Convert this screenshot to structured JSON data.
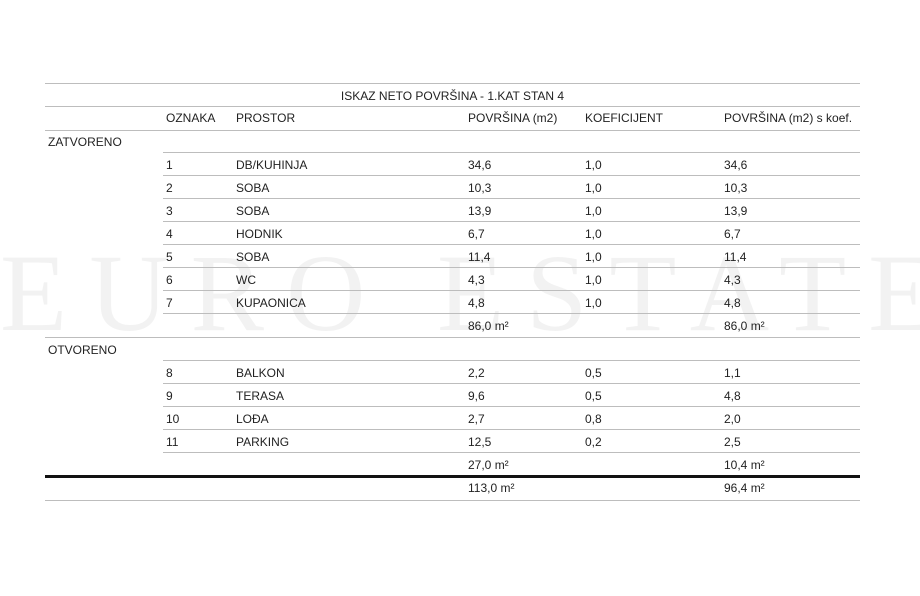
{
  "watermark": "EURO ESTATE",
  "title": "ISKAZ NETO POVRŠINA - 1.KAT STAN 4",
  "headers": {
    "oznaka": "OZNAKA",
    "prostor": "PROSTOR",
    "povrsina": "POVRŠINA (m2)",
    "koeficijent": "KOEFICIJENT",
    "povrsina_koef": "POVRŠINA (m2) s koef."
  },
  "sections": [
    {
      "label": "ZATVORENO",
      "rows": [
        [
          "1",
          "DB/KUHINJA",
          "34,6",
          "1,0",
          "34,6"
        ],
        [
          "2",
          "SOBA",
          "10,3",
          "1,0",
          "10,3"
        ],
        [
          "3",
          "SOBA",
          "13,9",
          "1,0",
          "13,9"
        ],
        [
          "4",
          "HODNIK",
          "6,7",
          "1,0",
          "6,7"
        ],
        [
          "5",
          "SOBA",
          "11,4",
          "1,0",
          "11,4"
        ],
        [
          "6",
          "WC",
          "4,3",
          "1,0",
          "4,3"
        ],
        [
          "7",
          "KUPAONICA",
          "4,8",
          "1,0",
          "4,8"
        ]
      ],
      "sum": [
        "86,0 m²",
        "86,0 m²"
      ]
    },
    {
      "label": "OTVORENO",
      "rows": [
        [
          "8",
          "BALKON",
          "2,2",
          "0,5",
          "1,1"
        ],
        [
          "9",
          "TERASA",
          "9,6",
          "0,5",
          "4,8"
        ],
        [
          "10",
          "LOĐA",
          "2,7",
          "0,8",
          "2,0"
        ],
        [
          "11",
          "PARKING",
          "12,5",
          "0,2",
          "2,5"
        ]
      ],
      "sum": [
        "27,0 m²",
        "10,4 m²"
      ]
    }
  ],
  "total": [
    "113,0 m²",
    "96,4 m²"
  ]
}
